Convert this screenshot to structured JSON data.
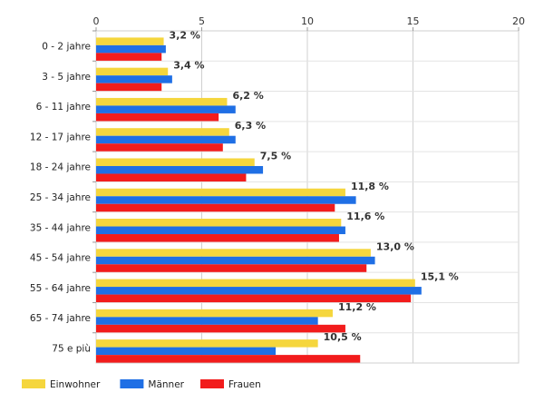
{
  "chart_data": {
    "type": "bar",
    "orientation": "horizontal",
    "categories": [
      "0 - 2 jahre",
      "3 - 5 jahre",
      "6 - 11 jahre",
      "12 - 17 jahre",
      "18 - 24 jahre",
      "25 - 34 jahre",
      "35 - 44 jahre",
      "45 - 54 jahre",
      "55 - 64 jahre",
      "65 - 74 jahre",
      "75 e più"
    ],
    "series": [
      {
        "name": "Einwohner",
        "color": "#f5d63d",
        "values": [
          3.2,
          3.4,
          6.2,
          6.3,
          7.5,
          11.8,
          11.6,
          13.0,
          15.1,
          11.2,
          10.5
        ],
        "labels": [
          "3,2 %",
          "3,4 %",
          "6,2 %",
          "6,3 %",
          "7,5 %",
          "11,8 %",
          "11,6 %",
          "13,0 %",
          "15,1 %",
          "11,2 %",
          "10,5 %"
        ]
      },
      {
        "name": "Männer",
        "color": "#1f6fe5",
        "values": [
          3.3,
          3.6,
          6.6,
          6.6,
          7.9,
          12.3,
          11.8,
          13.2,
          15.4,
          10.5,
          8.5
        ]
      },
      {
        "name": "Frauen",
        "color": "#f21c1c",
        "values": [
          3.1,
          3.1,
          5.8,
          6.0,
          7.1,
          11.3,
          11.5,
          12.8,
          14.9,
          11.8,
          12.5
        ]
      }
    ],
    "xlim": [
      0,
      20
    ],
    "xticks": [
      "0",
      "5",
      "10",
      "15",
      "20"
    ],
    "grid": true,
    "legend_position": "bottom-left",
    "legend": [
      "Einwohner",
      "Männer",
      "Frauen"
    ]
  }
}
